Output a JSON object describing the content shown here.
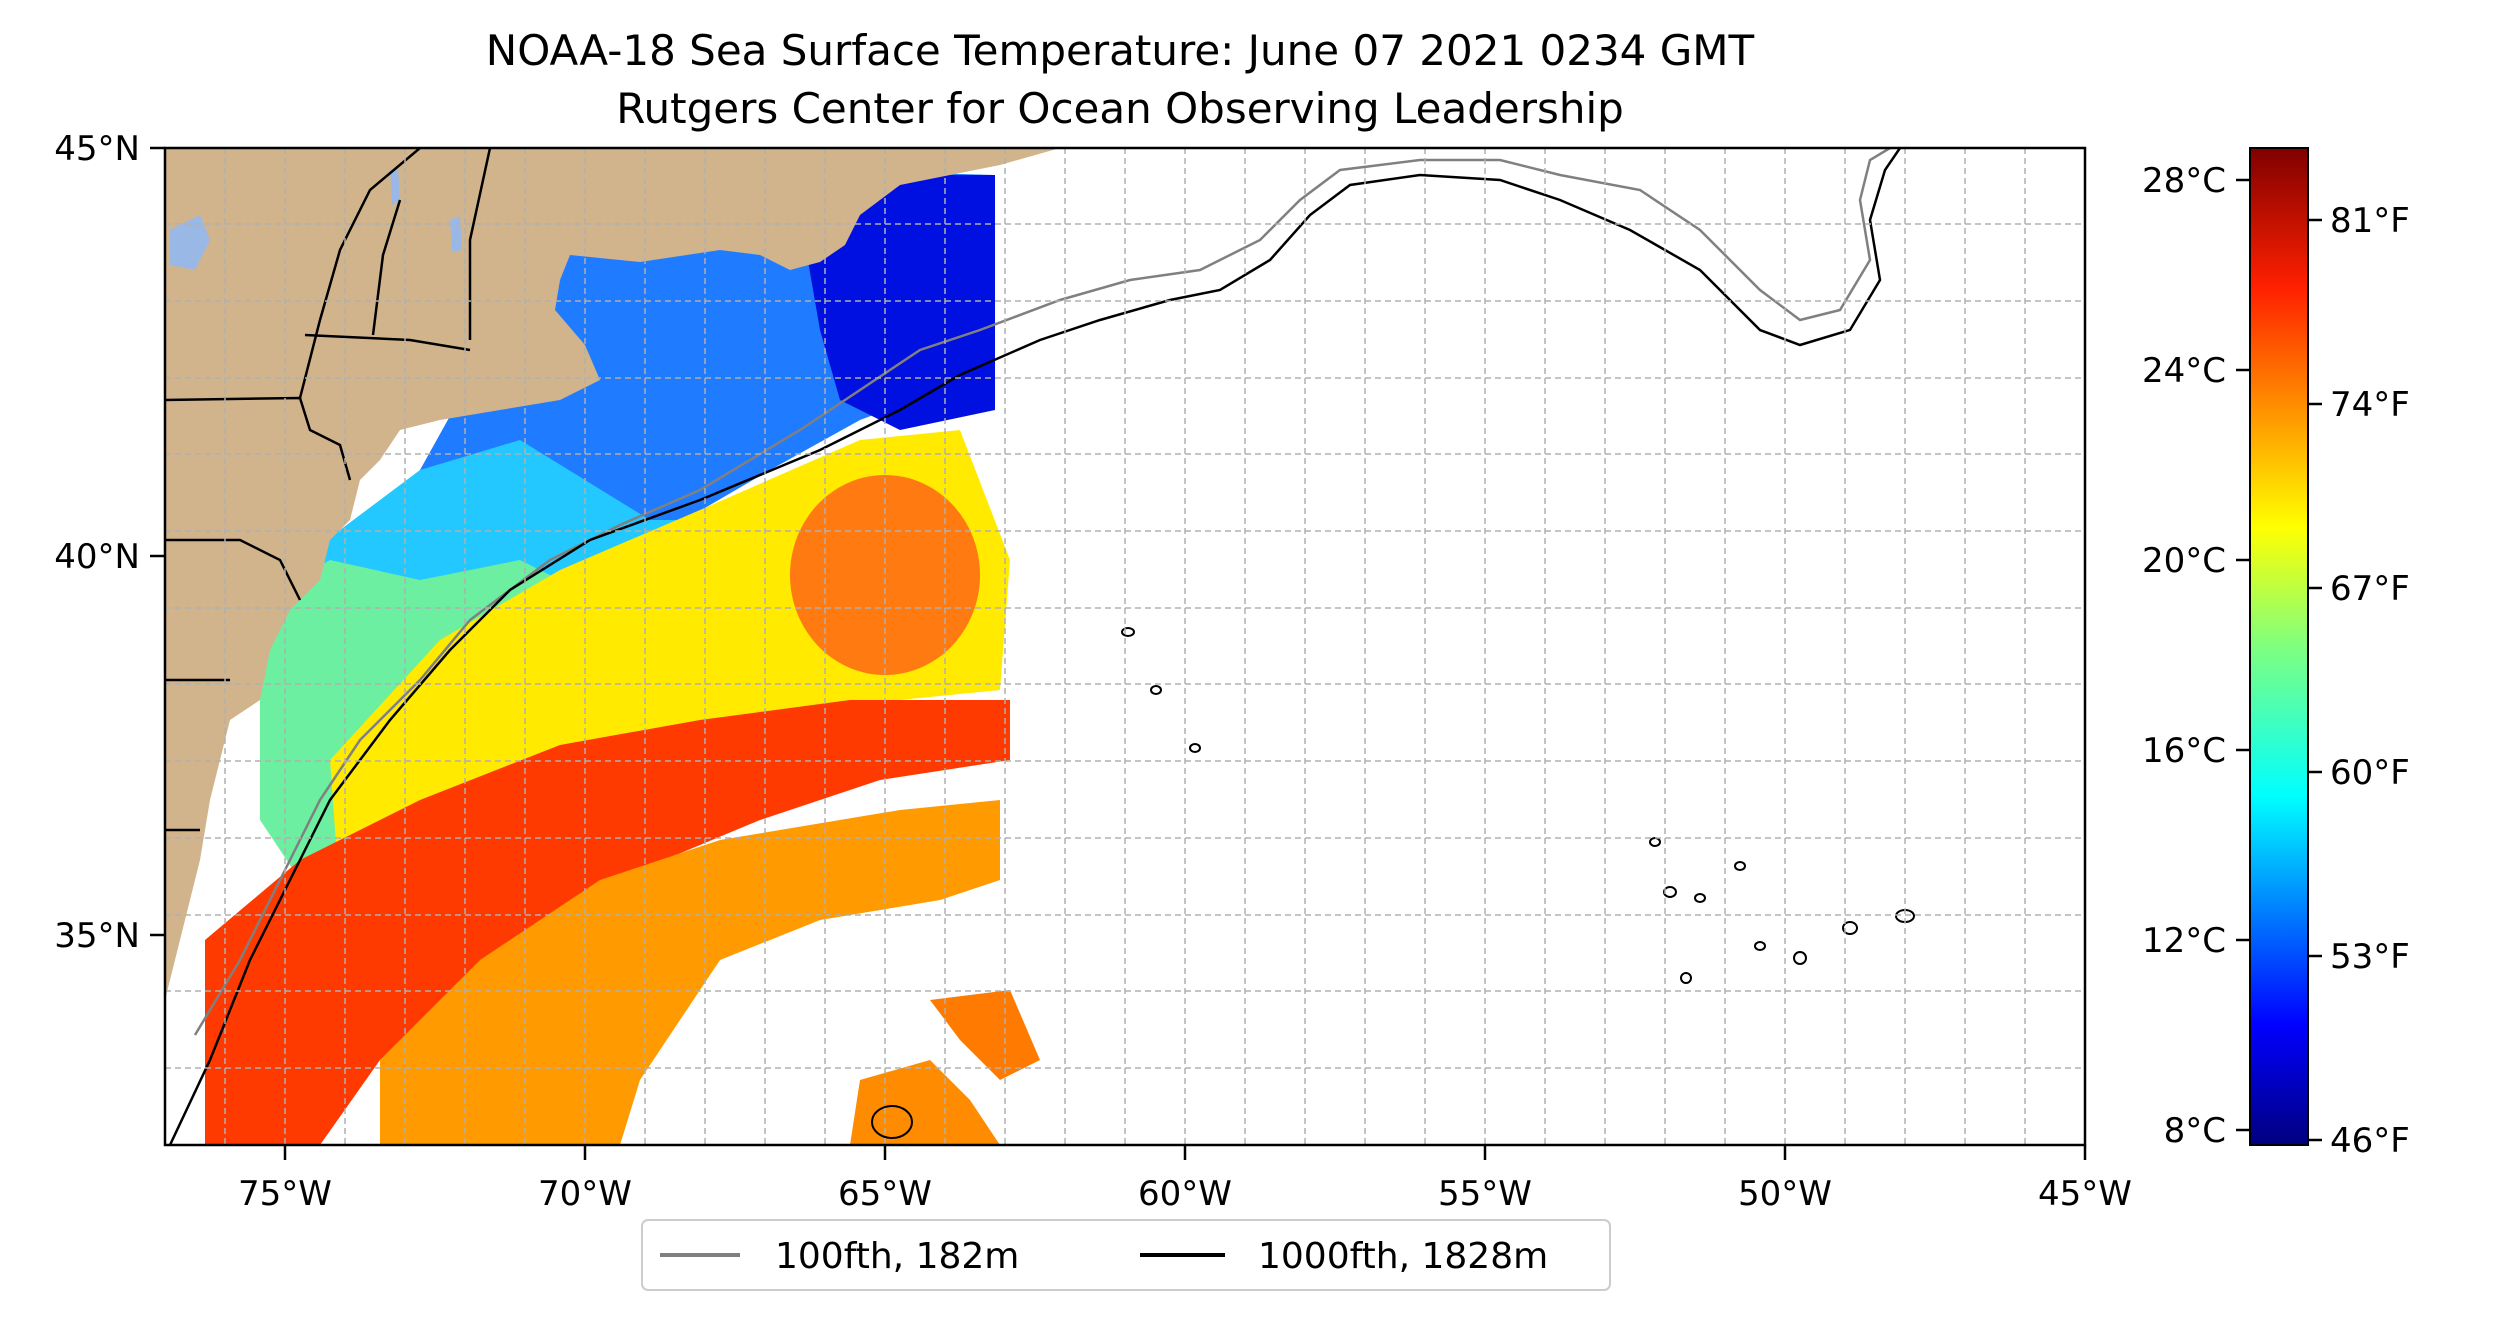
{
  "title": "NOAA-18 Sea Surface Temperature: June 07 2021 0234 GMT",
  "subtitle": "Rutgers Center for Ocean Observing Leadership",
  "x_ticks": [
    "75°W",
    "70°W",
    "65°W",
    "60°W",
    "55°W",
    "50°W",
    "45°W"
  ],
  "y_ticks": [
    "45°N",
    "40°N",
    "35°N"
  ],
  "colorbar": {
    "celsius": [
      "28°C",
      "24°C",
      "20°C",
      "16°C",
      "12°C",
      "8°C"
    ],
    "fahrenheit": [
      "81°F",
      "74°F",
      "67°F",
      "60°F",
      "53°F",
      "46°F"
    ],
    "min_c": 7.7,
    "max_c": 28.7
  },
  "legend": [
    {
      "label": "100fth, 182m",
      "color": "#808080"
    },
    {
      "label": "1000fth, 1828m",
      "color": "#000000"
    }
  ],
  "map_extent": {
    "lon_min": -77,
    "lon_max": -45,
    "lat_min": 32,
    "lat_max": 45
  },
  "colors": {
    "land": "#d2b48c",
    "grid": "#b0b0b0",
    "lake": "#9ab8e6"
  }
}
